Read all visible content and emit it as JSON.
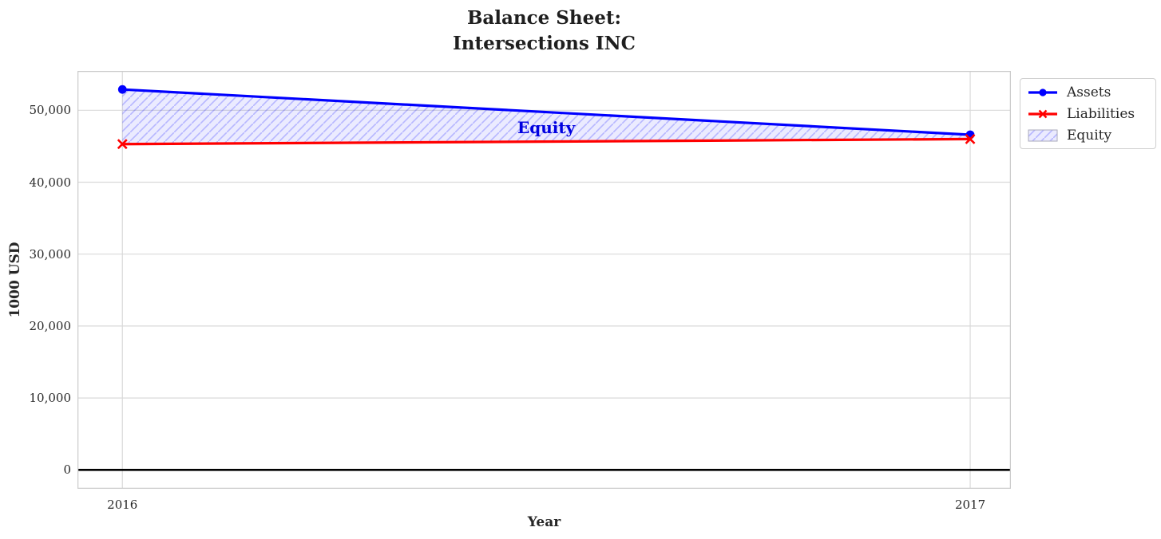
{
  "title": {
    "line1": "Balance Sheet:",
    "line2": "Intersections INC"
  },
  "chart_data": {
    "type": "line",
    "title": "Balance Sheet: Intersections INC",
    "xlabel": "Year",
    "ylabel": "1000 USD",
    "x": [
      2016,
      2017
    ],
    "series": [
      {
        "name": "Assets",
        "values": [
          52900,
          46600
        ],
        "color": "#0000ff",
        "marker": "circle",
        "line_width": 3.2
      },
      {
        "name": "Liabilities",
        "values": [
          45300,
          46000
        ],
        "color": "#ff0000",
        "marker": "x",
        "line_width": 3.2
      }
    ],
    "fill_between": {
      "label": "Equity",
      "upper": "Assets",
      "lower": "Liabilities",
      "fill_color": "rgba(0,0,255,0.08)",
      "hatch_color": "rgba(0,0,255,0.22)",
      "hatch": "/"
    },
    "annotation": {
      "text": "Equity",
      "x": 2016.5,
      "y": 47600,
      "color": "#0000e0",
      "font_size": 20
    },
    "xlim": [
      2015.947,
      2017.048
    ],
    "ylim": [
      -2630,
      55470
    ],
    "yticks": [
      0,
      10000,
      20000,
      30000,
      40000,
      50000
    ],
    "ytick_labels": [
      "0",
      "10,000",
      "20,000",
      "30,000",
      "40,000",
      "50,000"
    ],
    "xticks": [
      2016,
      2017
    ],
    "xtick_labels": [
      "2016",
      "2017"
    ],
    "zero_line": {
      "y": 0,
      "color": "#000000",
      "width": 2.6
    },
    "grid": {
      "show": true,
      "color": "#d9d9d9"
    },
    "spine_color": "#cccccc",
    "legend": {
      "location": "upper-right-outside",
      "entries": [
        {
          "label": "Assets",
          "swatch": "line-circle",
          "color": "#0000ff"
        },
        {
          "label": "Liabilities",
          "swatch": "line-x",
          "color": "#ff0000"
        },
        {
          "label": "Equity",
          "swatch": "hatch-patch"
        }
      ]
    }
  }
}
